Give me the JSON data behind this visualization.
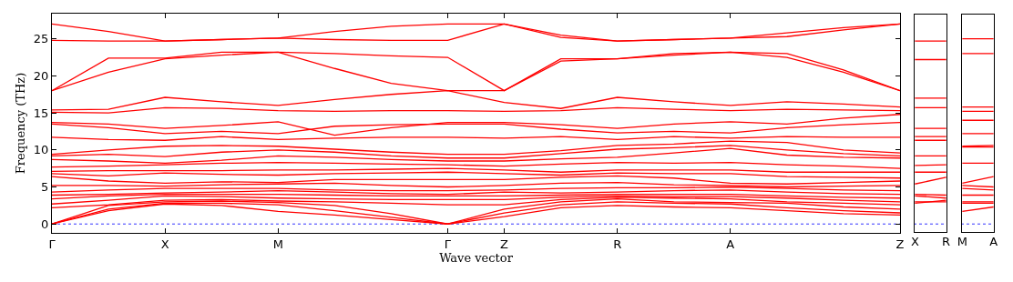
{
  "chart_data": [
    {
      "type": "line",
      "xlabel": "Wave vector",
      "ylabel": "Frequency (THz)",
      "grid": false,
      "line_style": "solid",
      "categories": [
        "Γ",
        null,
        "X",
        null,
        "M",
        null,
        null,
        "Γ",
        "Z",
        null,
        "R",
        null,
        "A",
        null,
        null,
        "Z"
      ],
      "ylim": [
        -1.2,
        28.4
      ],
      "yticks": [
        0,
        5,
        10,
        15,
        20,
        25
      ],
      "ref_lines": [
        {
          "axis": "y",
          "value": 0,
          "color": "#0000ff",
          "line_style": "dotted"
        }
      ],
      "series": [
        {
          "color": "#ff0000",
          "values": [
            0,
            1.8,
            2.7,
            2.5,
            1.7,
            1.2,
            0.6,
            0,
            1.0,
            2.2,
            2.5,
            2.3,
            2.2,
            1.8,
            1.4,
            1.2
          ]
        },
        {
          "color": "#ff0000",
          "values": [
            0,
            2.0,
            2.8,
            2.8,
            2.6,
            1.8,
            0.9,
            0,
            1.5,
            2.6,
            3.0,
            2.8,
            2.7,
            2.2,
            1.8,
            1.5
          ]
        },
        {
          "color": "#ff0000",
          "values": [
            0,
            2.5,
            3.0,
            3.1,
            2.9,
            2.5,
            1.4,
            0,
            2.0,
            3.0,
            3.4,
            3.0,
            2.9,
            2.8,
            2.3,
            2.0
          ]
        },
        {
          "color": "#ff0000",
          "values": [
            2.2,
            2.6,
            3.2,
            3.3,
            3.1,
            3.0,
            2.8,
            2.6,
            2.6,
            3.3,
            3.6,
            3.5,
            3.4,
            3.0,
            2.8,
            2.6
          ]
        },
        {
          "color": "#ff0000",
          "values": [
            2.7,
            3.2,
            3.8,
            3.7,
            3.5,
            3.4,
            3.3,
            3.3,
            3.3,
            3.6,
            3.8,
            3.7,
            3.7,
            3.5,
            3.2,
            3.0
          ]
        },
        {
          "color": "#ff0000",
          "values": [
            3.4,
            3.8,
            4.0,
            4.0,
            4.0,
            3.9,
            3.8,
            3.8,
            3.8,
            3.9,
            4.0,
            4.0,
            4.0,
            3.8,
            3.6,
            3.5
          ]
        },
        {
          "color": "#ff0000",
          "values": [
            3.9,
            4.0,
            4.2,
            4.3,
            4.5,
            4.3,
            4.1,
            4.0,
            4.3,
            4.2,
            4.3,
            4.5,
            4.6,
            4.3,
            4.1,
            4.0
          ]
        },
        {
          "color": "#ff0000",
          "values": [
            4.3,
            4.6,
            4.8,
            4.8,
            4.8,
            4.6,
            4.5,
            4.5,
            4.6,
            4.8,
            4.9,
            4.9,
            5.0,
            4.8,
            4.6,
            4.5
          ]
        },
        {
          "color": "#ff0000",
          "values": [
            5.2,
            5.2,
            5.1,
            5.3,
            5.4,
            5.5,
            5.2,
            5.0,
            5.2,
            5.5,
            5.6,
            5.3,
            5.2,
            5.0,
            5.1,
            5.2
          ]
        },
        {
          "color": "#ff0000",
          "values": [
            6.4,
            5.8,
            5.5,
            5.7,
            5.6,
            6.0,
            6.0,
            6.0,
            6.0,
            6.3,
            6.5,
            6.2,
            5.5,
            5.4,
            5.6,
            5.8
          ]
        },
        {
          "color": "#ff0000",
          "values": [
            6.8,
            6.5,
            6.9,
            6.7,
            6.6,
            6.8,
            6.9,
            7.0,
            6.8,
            6.6,
            6.9,
            6.8,
            6.8,
            6.4,
            6.3,
            6.2
          ]
        },
        {
          "color": "#ff0000",
          "values": [
            7.1,
            7.2,
            7.2,
            7.2,
            7.3,
            7.3,
            7.4,
            7.5,
            7.3,
            7.0,
            7.3,
            7.3,
            7.3,
            7.0,
            7.0,
            7.0
          ]
        },
        {
          "color": "#ff0000",
          "values": [
            7.7,
            7.8,
            8.0,
            8.2,
            8.3,
            8.2,
            8.1,
            8.0,
            7.8,
            8.1,
            8.3,
            8.2,
            8.3,
            8.0,
            7.8,
            7.5
          ]
        },
        {
          "color": "#ff0000",
          "values": [
            8.7,
            8.5,
            8.2,
            8.6,
            9.2,
            9.0,
            8.7,
            8.5,
            8.5,
            8.8,
            9.0,
            9.6,
            10.2,
            9.3,
            9.0,
            8.9
          ]
        },
        {
          "color": "#ff0000",
          "values": [
            9.2,
            9.4,
            9.1,
            9.7,
            10.0,
            9.7,
            9.2,
            8.9,
            8.9,
            9.5,
            10.1,
            10.3,
            10.6,
            10.0,
            9.5,
            9.2
          ]
        },
        {
          "color": "#ff0000",
          "values": [
            9.4,
            10.0,
            10.5,
            10.6,
            10.5,
            10.1,
            9.7,
            9.4,
            9.4,
            9.9,
            10.6,
            10.8,
            11.2,
            11.0,
            10.0,
            9.6
          ]
        },
        {
          "color": "#ff0000",
          "values": [
            11.7,
            11.4,
            11.3,
            11.8,
            11.4,
            11.6,
            11.7,
            11.7,
            11.6,
            11.8,
            11.4,
            11.8,
            11.6,
            11.8,
            11.7,
            11.7
          ]
        },
        {
          "color": "#ff0000",
          "values": [
            13.5,
            13.0,
            12.2,
            12.5,
            12.2,
            13.2,
            13.4,
            13.5,
            13.5,
            12.8,
            12.3,
            12.5,
            12.3,
            13.0,
            13.4,
            13.7
          ]
        },
        {
          "color": "#ff0000",
          "values": [
            13.7,
            13.5,
            12.9,
            13.3,
            13.8,
            12.0,
            13.0,
            13.7,
            13.7,
            13.4,
            12.9,
            13.5,
            13.8,
            13.5,
            14.3,
            14.8
          ]
        },
        {
          "color": "#ff0000",
          "values": [
            15.1,
            15.0,
            15.7,
            15.6,
            15.3,
            15.2,
            15.3,
            15.3,
            15.2,
            15.3,
            15.7,
            15.5,
            15.3,
            15.5,
            15.4,
            15.3
          ]
        },
        {
          "color": "#ff0000",
          "values": [
            15.4,
            15.5,
            17.1,
            16.5,
            16.0,
            16.8,
            17.5,
            18.0,
            16.4,
            15.6,
            17.1,
            16.5,
            16.0,
            16.5,
            16.2,
            15.8
          ]
        },
        {
          "color": "#ff0000",
          "values": [
            18.0,
            20.5,
            22.3,
            22.8,
            23.2,
            21.0,
            19.0,
            18.0,
            18.0,
            22.0,
            22.3,
            22.8,
            23.2,
            22.5,
            20.5,
            18.0
          ]
        },
        {
          "color": "#ff0000",
          "values": [
            18.0,
            22.4,
            22.4,
            23.2,
            23.2,
            23.0,
            22.7,
            22.5,
            18.0,
            22.3,
            22.3,
            23.0,
            23.2,
            23.0,
            20.8,
            18.0
          ]
        },
        {
          "color": "#ff0000",
          "values": [
            24.8,
            24.7,
            24.7,
            24.9,
            25.1,
            24.9,
            24.8,
            24.8,
            27.0,
            25.5,
            24.7,
            24.9,
            25.1,
            25.3,
            26.2,
            27.0
          ]
        },
        {
          "color": "#ff0000",
          "values": [
            27.0,
            26.0,
            24.7,
            24.9,
            25.1,
            26.0,
            26.7,
            27.0,
            27.0,
            25.2,
            24.7,
            24.9,
            25.1,
            25.8,
            26.5,
            27.0
          ]
        }
      ]
    },
    {
      "type": "line",
      "grid": false,
      "line_style": "solid",
      "tick_labels": "x",
      "categories": [
        "X",
        "R"
      ],
      "ylim": [
        -1.2,
        28.4
      ],
      "ref_lines": [
        {
          "axis": "y",
          "value": 0,
          "color": "#0000ff",
          "line_style": "dotted"
        }
      ],
      "series": [
        {
          "color": "#ff0000",
          "values": [
            2.8,
            3.2
          ]
        },
        {
          "color": "#ff0000",
          "values": [
            3.0,
            3.0
          ]
        },
        {
          "color": "#ff0000",
          "values": [
            3.8,
            3.5
          ]
        },
        {
          "color": "#ff0000",
          "values": [
            4.0,
            3.9
          ]
        },
        {
          "color": "#ff0000",
          "values": [
            5.4,
            6.3
          ]
        },
        {
          "color": "#ff0000",
          "values": [
            7.0,
            7.0
          ]
        },
        {
          "color": "#ff0000",
          "values": [
            7.9,
            8.0
          ]
        },
        {
          "color": "#ff0000",
          "values": [
            9.2,
            9.2
          ]
        },
        {
          "color": "#ff0000",
          "values": [
            11.3,
            11.3
          ]
        },
        {
          "color": "#ff0000",
          "values": [
            11.8,
            11.8
          ]
        },
        {
          "color": "#ff0000",
          "values": [
            12.9,
            12.9
          ]
        },
        {
          "color": "#ff0000",
          "values": [
            15.7,
            15.7
          ]
        },
        {
          "color": "#ff0000",
          "values": [
            17.0,
            17.0
          ]
        },
        {
          "color": "#ff0000",
          "values": [
            22.2,
            22.2
          ]
        },
        {
          "color": "#ff0000",
          "values": [
            24.7,
            24.7
          ]
        }
      ]
    },
    {
      "type": "line",
      "grid": false,
      "line_style": "solid",
      "tick_labels": "x",
      "categories": [
        "M",
        "A"
      ],
      "ylim": [
        -1.2,
        28.4
      ],
      "ref_lines": [
        {
          "axis": "y",
          "value": 0,
          "color": "#0000ff",
          "line_style": "dotted"
        }
      ],
      "series": [
        {
          "color": "#ff0000",
          "values": [
            1.7,
            2.3
          ]
        },
        {
          "color": "#ff0000",
          "values": [
            2.8,
            2.8
          ]
        },
        {
          "color": "#ff0000",
          "values": [
            3.0,
            3.0
          ]
        },
        {
          "color": "#ff0000",
          "values": [
            3.9,
            3.9
          ]
        },
        {
          "color": "#ff0000",
          "values": [
            4.8,
            4.6
          ]
        },
        {
          "color": "#ff0000",
          "values": [
            5.2,
            5.0
          ]
        },
        {
          "color": "#ff0000",
          "values": [
            5.5,
            6.4
          ]
        },
        {
          "color": "#ff0000",
          "values": [
            8.2,
            8.2
          ]
        },
        {
          "color": "#ff0000",
          "values": [
            10.4,
            10.4
          ]
        },
        {
          "color": "#ff0000",
          "values": [
            10.5,
            10.6
          ]
        },
        {
          "color": "#ff0000",
          "values": [
            12.2,
            12.2
          ]
        },
        {
          "color": "#ff0000",
          "values": [
            14.0,
            14.0
          ]
        },
        {
          "color": "#ff0000",
          "values": [
            15.2,
            15.2
          ]
        },
        {
          "color": "#ff0000",
          "values": [
            15.8,
            15.8
          ]
        },
        {
          "color": "#ff0000",
          "values": [
            23.0,
            23.0
          ]
        },
        {
          "color": "#ff0000",
          "values": [
            25.0,
            25.0
          ]
        }
      ]
    }
  ]
}
